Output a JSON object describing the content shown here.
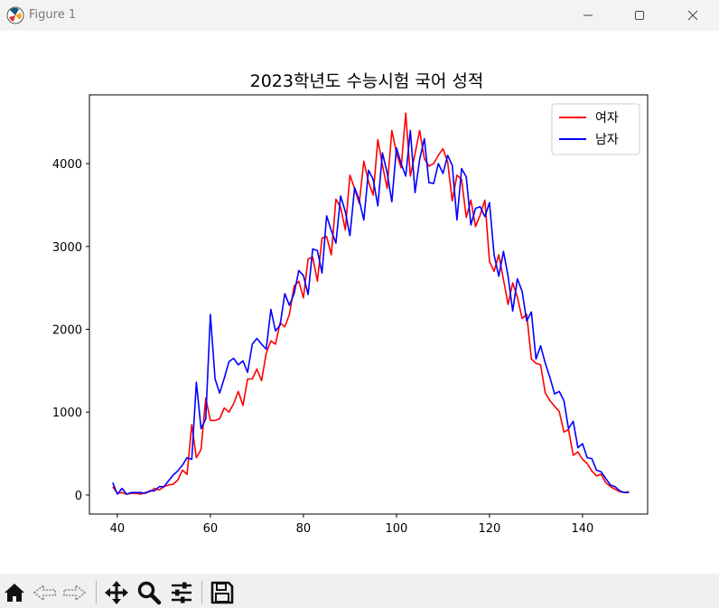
{
  "window": {
    "title": "Figure 1",
    "app_icon": "matplotlib-figure-icon",
    "controls": [
      "minimize-icon",
      "maximize-icon",
      "close-icon"
    ]
  },
  "toolbar": {
    "buttons": [
      "home-icon",
      "back-icon",
      "forward-icon",
      "pan-icon",
      "zoom-icon",
      "configure-subplots-icon",
      "save-icon"
    ]
  },
  "chart_data": {
    "type": "line",
    "title": "2023학년도 수능시험 국어 성적",
    "xlabel": "",
    "ylabel": "",
    "xlim": [
      34,
      154
    ],
    "ylim": [
      -230,
      4830
    ],
    "xticks": [
      40,
      60,
      80,
      100,
      120,
      140
    ],
    "yticks": [
      0,
      1000,
      2000,
      3000,
      4000
    ],
    "grid": false,
    "legend_position": "upper right",
    "x": [
      39,
      40,
      41,
      42,
      43,
      44,
      45,
      46,
      47,
      48,
      49,
      50,
      51,
      52,
      53,
      54,
      55,
      56,
      57,
      58,
      59,
      60,
      61,
      62,
      63,
      64,
      65,
      66,
      67,
      68,
      69,
      70,
      71,
      72,
      73,
      74,
      75,
      76,
      77,
      78,
      79,
      80,
      81,
      82,
      83,
      84,
      85,
      86,
      87,
      88,
      89,
      90,
      91,
      92,
      93,
      94,
      95,
      96,
      97,
      98,
      99,
      100,
      101,
      102,
      103,
      104,
      105,
      106,
      107,
      108,
      109,
      110,
      111,
      112,
      113,
      114,
      115,
      116,
      117,
      118,
      119,
      120,
      121,
      122,
      123,
      124,
      125,
      126,
      127,
      128,
      129,
      130,
      131,
      132,
      133,
      134,
      135,
      136,
      137,
      138,
      139,
      140,
      141,
      142,
      143,
      144,
      145,
      146,
      147,
      148,
      149,
      150
    ],
    "series": [
      {
        "name": "여자",
        "color": "#ff0000",
        "values": [
          100,
          20,
          30,
          10,
          20,
          20,
          10,
          30,
          40,
          80,
          60,
          100,
          120,
          130,
          180,
          300,
          250,
          850,
          450,
          550,
          1170,
          900,
          900,
          920,
          1050,
          1000,
          1100,
          1250,
          1080,
          1400,
          1400,
          1520,
          1380,
          1710,
          1860,
          1820,
          2080,
          2030,
          2180,
          2520,
          2580,
          2380,
          2850,
          2870,
          2580,
          3100,
          3120,
          2900,
          3570,
          3470,
          3200,
          3860,
          3700,
          3520,
          4030,
          3780,
          3620,
          4290,
          3980,
          3700,
          4400,
          4130,
          3950,
          4610,
          3850,
          4120,
          4400,
          4060,
          3970,
          4000,
          4100,
          4180,
          4020,
          3550,
          3860,
          3810,
          3350,
          3560,
          3240,
          3380,
          3560,
          2820,
          2700,
          2900,
          2600,
          2300,
          2560,
          2390,
          2130,
          2180,
          1640,
          1590,
          1570,
          1230,
          1140,
          1070,
          1010,
          760,
          790,
          480,
          520,
          430,
          380,
          290,
          230,
          250,
          150,
          100,
          70,
          40,
          30,
          40
        ]
      },
      {
        "name": "남자",
        "color": "#0000ff",
        "values": [
          150,
          10,
          80,
          10,
          30,
          30,
          30,
          20,
          50,
          50,
          100,
          100,
          170,
          240,
          290,
          360,
          450,
          430,
          1360,
          800,
          920,
          2180,
          1400,
          1230,
          1410,
          1610,
          1650,
          1570,
          1620,
          1480,
          1820,
          1890,
          1820,
          1760,
          2240,
          1980,
          2050,
          2430,
          2290,
          2430,
          2710,
          2650,
          2420,
          2970,
          2950,
          2680,
          3370,
          3190,
          3040,
          3610,
          3420,
          3130,
          3710,
          3560,
          3320,
          3920,
          3810,
          3490,
          4130,
          3890,
          3540,
          4190,
          4000,
          3850,
          4400,
          3650,
          4050,
          4300,
          3770,
          3760,
          4000,
          3880,
          4100,
          3980,
          3320,
          3940,
          3840,
          3260,
          3460,
          3480,
          3360,
          3530,
          2900,
          2640,
          2940,
          2640,
          2220,
          2610,
          2460,
          2100,
          2210,
          1640,
          1800,
          1590,
          1420,
          1220,
          1250,
          1140,
          800,
          890,
          570,
          620,
          450,
          440,
          300,
          280,
          200,
          120,
          100,
          50,
          30,
          30
        ]
      }
    ]
  }
}
